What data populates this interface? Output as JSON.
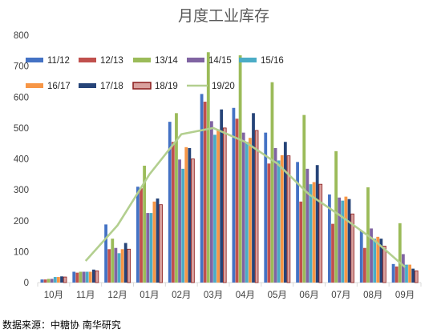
{
  "source_note": "数据来源：中糖协  南华研究",
  "chart_data": {
    "type": "bar",
    "title": "月度工业库存",
    "xlabel": "",
    "ylabel": "",
    "ylim": [
      0,
      800
    ],
    "yticks": [
      0,
      100,
      200,
      300,
      400,
      500,
      600,
      700,
      800
    ],
    "grid": false,
    "legend_position": "top-left",
    "categories": [
      "10月",
      "11月",
      "12月",
      "01月",
      "02月",
      "03月",
      "04月",
      "05月",
      "06月",
      "07月",
      "08月",
      "09月"
    ],
    "series": [
      {
        "name": "11/12",
        "type": "bar",
        "color": "#4472C4",
        "values": [
          10,
          35,
          188,
          310,
          520,
          610,
          565,
          485,
          390,
          285,
          168,
          60
        ]
      },
      {
        "name": "12/13",
        "type": "bar",
        "color": "#C0504D",
        "values": [
          10,
          32,
          108,
          305,
          455,
          585,
          530,
          385,
          262,
          190,
          112,
          52
        ]
      },
      {
        "name": "13/14",
        "type": "bar",
        "color": "#9BBB59",
        "values": [
          12,
          35,
          142,
          378,
          548,
          745,
          735,
          648,
          542,
          425,
          308,
          192
        ]
      },
      {
        "name": "14/15",
        "type": "bar",
        "color": "#8064A2",
        "values": [
          12,
          35,
          112,
          225,
          398,
          522,
          485,
          435,
          368,
          275,
          175,
          92
        ]
      },
      {
        "name": "15/16",
        "type": "bar",
        "color": "#4BACC6",
        "values": [
          18,
          35,
          95,
          225,
          368,
          478,
          455,
          395,
          318,
          265,
          142,
          58
        ]
      },
      {
        "name": "16/17",
        "type": "bar",
        "color": "#F79646",
        "values": [
          18,
          35,
          108,
          262,
          438,
          495,
          468,
          412,
          325,
          278,
          148,
          58
        ]
      },
      {
        "name": "17/18",
        "type": "bar",
        "color": "#264478",
        "values": [
          20,
          42,
          128,
          272,
          435,
          560,
          548,
          455,
          380,
          270,
          142,
          45
        ]
      },
      {
        "name": "18/19",
        "type": "bar",
        "color": "#D9A19E",
        "values": [
          18,
          38,
          108,
          252,
          400,
          500,
          492,
          410,
          318,
          222,
          118,
          38
        ]
      },
      {
        "name": "19/20",
        "type": "line",
        "color": "#B3CF8F",
        "values": [
          null,
          70,
          185,
          350,
          480,
          500,
          455,
          385,
          285,
          215,
          140,
          50
        ]
      }
    ]
  }
}
